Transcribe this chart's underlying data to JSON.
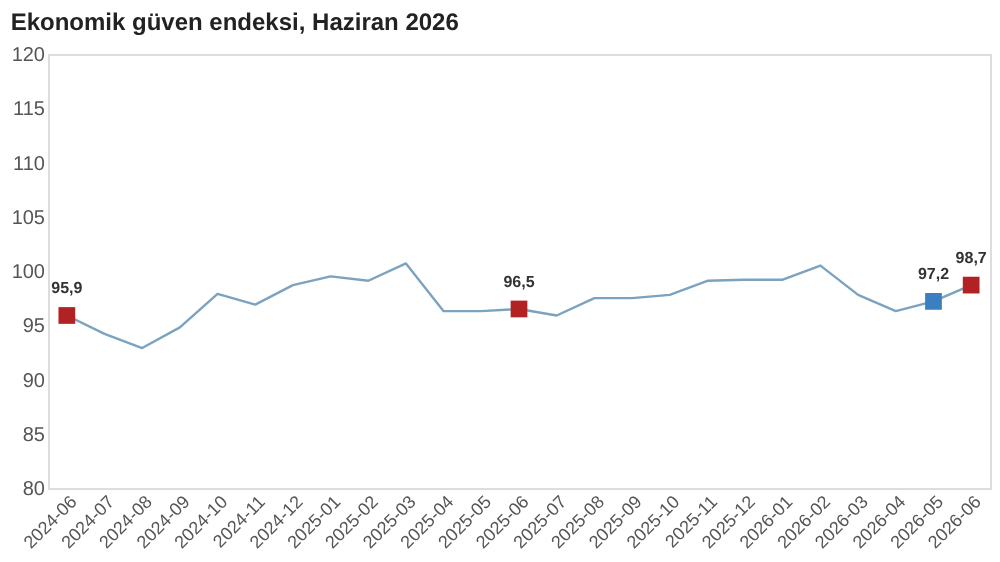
{
  "chart_data": {
    "type": "line",
    "title": "Ekonomik güven endeksi, Haziran 2026",
    "categories": [
      "2024-06",
      "2024-07",
      "2024-08",
      "2024-09",
      "2024-10",
      "2024-11",
      "2024-12",
      "2025-01",
      "2025-02",
      "2025-03",
      "2025-04",
      "2025-05",
      "2025-06",
      "2025-07",
      "2025-08",
      "2025-09",
      "2025-10",
      "2025-11",
      "2025-12",
      "2026-01",
      "2026-02",
      "2026-03",
      "2026-04",
      "2026-05",
      "2026-06"
    ],
    "series": [
      {
        "color": "#7ba3c0",
        "values": [
          95.9,
          94.2,
          92.9,
          94.8,
          97.9,
          96.9,
          98.7,
          99.5,
          99.1,
          100.7,
          96.3,
          96.3,
          96.5,
          95.9,
          97.5,
          97.5,
          97.8,
          99.1,
          99.2,
          99.2,
          100.5,
          97.8,
          96.3,
          97.2,
          98.7
        ]
      },
      {
        "type": "scatter",
        "marker": "square",
        "values": [
          95.9,
          null,
          null,
          null,
          null,
          null,
          null,
          null,
          null,
          null,
          null,
          null,
          96.5,
          null,
          null,
          null,
          null,
          null,
          null,
          null,
          null,
          null,
          null,
          97.2,
          98.7
        ],
        "colors": [
          "#b22222",
          null,
          null,
          null,
          null,
          null,
          null,
          null,
          null,
          null,
          null,
          null,
          "#b22222",
          null,
          null,
          null,
          null,
          null,
          null,
          null,
          null,
          null,
          null,
          "#3a7fc0",
          "#b22222"
        ],
        "value_labels": [
          "95,9",
          null,
          null,
          null,
          null,
          null,
          null,
          null,
          null,
          null,
          null,
          null,
          "96,5",
          null,
          null,
          null,
          null,
          null,
          null,
          null,
          null,
          null,
          null,
          "97,2",
          "98,7"
        ]
      }
    ],
    "ylim": [
      80,
      120
    ],
    "yticks": [
      80,
      85,
      90,
      95,
      100,
      105,
      110,
      115,
      120
    ],
    "grid": false
  }
}
